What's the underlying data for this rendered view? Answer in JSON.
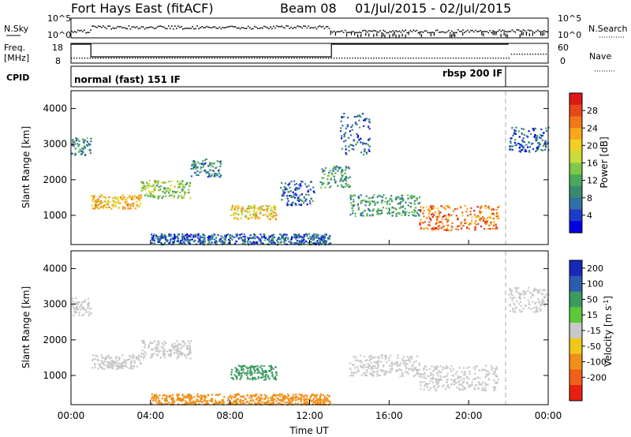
{
  "header": {
    "station": "Fort Hays East (fitACF)",
    "beam": "Beam 08",
    "date_range": "01/Jul/2015 - 02/Jul/2015"
  },
  "top_panels": {
    "nsky_label": "N.Sky",
    "nsky_top": "10^5",
    "nsky_bottom": "10^0",
    "nsearch_label": "N.Search",
    "nsearch_top": "10^5",
    "nsearch_bottom": "10^0",
    "freq_label": "Freq.",
    "freq_unit": "[MHz]",
    "freq_top": "18",
    "freq_bottom": "8",
    "nave_label": "Nave",
    "nave_top": "60",
    "nave_bottom": "0",
    "cpid_label": "CPID",
    "cpid_modes": [
      {
        "label": "normal (fast) 151 IF",
        "start_hour": 0
      },
      {
        "label": "rbsp 200 IF",
        "start_hour": 22
      }
    ]
  },
  "chart_data": [
    {
      "type": "heatmap",
      "panel": "power",
      "ylabel": "Slant Range [km]",
      "xlabel": "",
      "x": [
        "00:00",
        "04:00",
        "08:00",
        "12:00",
        "16:00",
        "20:00",
        "00:00"
      ],
      "xlim_hours": [
        0,
        24
      ],
      "y_ticks": [
        "1000",
        "2000",
        "3000",
        "4000"
      ],
      "ylim": [
        180,
        4500
      ],
      "colorbar": {
        "label": "Power [dB]",
        "ticks": [
          "4",
          "8",
          "12",
          "16",
          "20",
          "24",
          "28"
        ],
        "range": [
          0,
          30
        ],
        "colors": [
          "#0000e0",
          "#1c3cc8",
          "#3070a8",
          "#3a8a70",
          "#4aa85a",
          "#7ec84a",
          "#c8dc3a",
          "#f0d020",
          "#f8a818",
          "#f07818",
          "#e84818",
          "#e01818"
        ]
      },
      "echo_regions": [
        {
          "hours": [
            0.0,
            1.0
          ],
          "range": [
            2700,
            3200
          ],
          "power": 8
        },
        {
          "hours": [
            1.0,
            3.5
          ],
          "range": [
            1200,
            1600
          ],
          "power": 20
        },
        {
          "hours": [
            3.5,
            6.0
          ],
          "range": [
            1500,
            2000
          ],
          "power": 14
        },
        {
          "hours": [
            6.0,
            7.5
          ],
          "range": [
            2100,
            2600
          ],
          "power": 8
        },
        {
          "hours": [
            8.0,
            10.3
          ],
          "range": [
            900,
            1300
          ],
          "power": 18
        },
        {
          "hours": [
            4.0,
            13.0
          ],
          "range": [
            200,
            500
          ],
          "power": 6
        },
        {
          "hours": [
            10.5,
            12.2
          ],
          "range": [
            1300,
            2000
          ],
          "power": 6
        },
        {
          "hours": [
            12.5,
            14.0
          ],
          "range": [
            1800,
            2400
          ],
          "power": 10
        },
        {
          "hours": [
            14.0,
            17.5
          ],
          "range": [
            1000,
            1600
          ],
          "power": 10
        },
        {
          "hours": [
            17.5,
            21.5
          ],
          "range": [
            600,
            1300
          ],
          "power": 24
        },
        {
          "hours": [
            13.5,
            15.0
          ],
          "range": [
            2700,
            3900
          ],
          "power": 6
        },
        {
          "hours": [
            22.0,
            24.0
          ],
          "range": [
            2800,
            3500
          ],
          "power": 6
        }
      ]
    },
    {
      "type": "heatmap",
      "panel": "velocity",
      "ylabel": "Slant Range [km]",
      "xlabel": "Time UT",
      "x": [
        "00:00",
        "04:00",
        "08:00",
        "12:00",
        "16:00",
        "20:00",
        "00:00"
      ],
      "xlim_hours": [
        0,
        24
      ],
      "y_ticks": [
        "1000",
        "2000",
        "3000",
        "4000"
      ],
      "ylim": [
        180,
        4500
      ],
      "colorbar": {
        "label": "Velocity [m s-1]",
        "ticks": [
          "200",
          "100",
          "50",
          "15",
          "-15",
          "-50",
          "-100",
          "-200"
        ],
        "colors": [
          "#1828b8",
          "#2c5cb0",
          "#3a9a60",
          "#5cc83c",
          "#c8c8c8",
          "#f0c818",
          "#f09018",
          "#f06018",
          "#e82010"
        ]
      },
      "echo_regions": [
        {
          "hours": [
            0.0,
            1.0
          ],
          "range": [
            2700,
            3200
          ],
          "velocity": 0
        },
        {
          "hours": [
            1.0,
            3.5
          ],
          "range": [
            1200,
            1600
          ],
          "velocity": 0
        },
        {
          "hours": [
            3.5,
            6.0
          ],
          "range": [
            1500,
            2000
          ],
          "velocity": 0
        },
        {
          "hours": [
            8.0,
            10.3
          ],
          "range": [
            900,
            1300
          ],
          "velocity": 40
        },
        {
          "hours": [
            4.0,
            13.0
          ],
          "range": [
            200,
            500
          ],
          "velocity": -40
        },
        {
          "hours": [
            14.0,
            17.5
          ],
          "range": [
            1000,
            1600
          ],
          "velocity": 0
        },
        {
          "hours": [
            17.5,
            21.5
          ],
          "range": [
            600,
            1300
          ],
          "velocity": 0
        },
        {
          "hours": [
            22.0,
            24.0
          ],
          "range": [
            2800,
            3500
          ],
          "velocity": 0
        }
      ]
    }
  ]
}
